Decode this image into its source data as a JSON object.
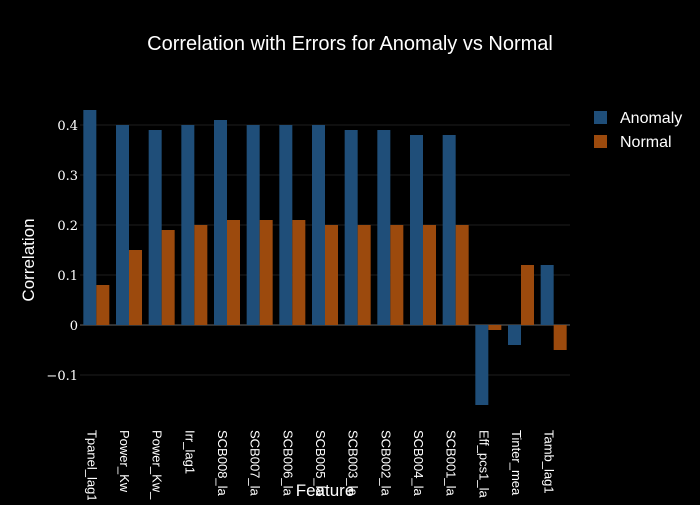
{
  "chart_data": {
    "type": "bar",
    "title": "Correlation with Errors for Anomaly vs Normal",
    "xlabel": "Feature",
    "ylabel": "Correlation",
    "categories": [
      "Tpanel_lag1",
      "Power_Kw",
      "Power_Kw_",
      "Irr_lag1",
      "SCB008_la",
      "SCB007_la",
      "SCB006_la",
      "SCB005_la",
      "SCB003_la",
      "SCB002_la",
      "SCB004_la",
      "SCB001_la",
      "Eff_pcs1_la",
      "Tinter_mea",
      "Tamb_lag1"
    ],
    "series": [
      {
        "name": "Anomaly",
        "color": "#1f4e79",
        "values": [
          0.43,
          0.4,
          0.39,
          0.4,
          0.41,
          0.4,
          0.4,
          0.4,
          0.39,
          0.39,
          0.38,
          0.38,
          -0.16,
          -0.04,
          0.12
        ]
      },
      {
        "name": "Normal",
        "color": "#9c4a0d",
        "values": [
          0.08,
          0.15,
          0.19,
          0.2,
          0.21,
          0.21,
          0.21,
          0.2,
          0.2,
          0.2,
          0.2,
          0.2,
          -0.01,
          0.12,
          -0.05
        ]
      }
    ],
    "ylim": [
      -0.19,
      0.45
    ],
    "yticks": [
      -0.1,
      0,
      0.1,
      0.2,
      0.3,
      0.4
    ],
    "ytick_labels": [
      "−0.1",
      "0",
      "0.1",
      "0.2",
      "0.3",
      "0.4"
    ],
    "legend_position": "top-right",
    "grid": true
  }
}
